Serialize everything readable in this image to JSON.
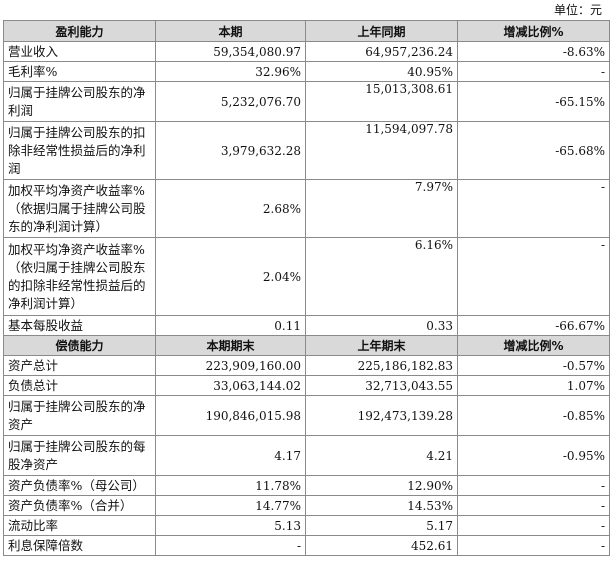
{
  "unit_label": "单位：元",
  "profitability": {
    "headers": [
      "盈利能力",
      "本期",
      "上年同期",
      "增减比例%"
    ],
    "rows": [
      {
        "label": "营业收入",
        "current": "59,354,080.97",
        "prior": "64,957,236.24",
        "change": "-8.63%"
      },
      {
        "label": "毛利率%",
        "current": "32.96%",
        "prior": "40.95%",
        "change": "-"
      },
      {
        "label": "归属于挂牌公司股东的净利润",
        "current": "5,232,076.70",
        "prior": "15,013,308.61",
        "change": "-65.15%"
      },
      {
        "label": "归属于挂牌公司股东的扣除非经常性损益后的净利润",
        "current": "3,979,632.28",
        "prior": "11,594,097.78",
        "change": "-65.68%"
      },
      {
        "label": "加权平均净资产收益率%（依据归属于挂牌公司股东的净利润计算）",
        "current": "2.68%",
        "prior": "7.97%",
        "change": "-"
      },
      {
        "label": "加权平均净资产收益率%（依归属于挂牌公司股东的扣除非经常性损益后的净利润计算）",
        "current": "2.04%",
        "prior": "6.16%",
        "change": "-"
      },
      {
        "label": "基本每股收益",
        "current": "0.11",
        "prior": "0.33",
        "change": "-66.67%"
      }
    ]
  },
  "solvency": {
    "headers": [
      "偿债能力",
      "本期期末",
      "上年期末",
      "增减比例%"
    ],
    "rows": [
      {
        "label": "资产总计",
        "current": "223,909,160.00",
        "prior": "225,186,182.83",
        "change": "-0.57%"
      },
      {
        "label": "负债总计",
        "current": "33,063,144.02",
        "prior": "32,713,043.55",
        "change": "1.07%"
      },
      {
        "label": "归属于挂牌公司股东的净资产",
        "current": "190,846,015.98",
        "prior": "192,473,139.28",
        "change": "-0.85%"
      },
      {
        "label": "归属于挂牌公司股东的每股净资产",
        "current": "4.17",
        "prior": "4.21",
        "change": "-0.95%"
      },
      {
        "label": "资产负债率%（母公司）",
        "current": "11.78%",
        "prior": "12.90%",
        "change": "-"
      },
      {
        "label": "资产负债率%（合并）",
        "current": "14.77%",
        "prior": "14.53%",
        "change": "-"
      },
      {
        "label": "流动比率",
        "current": "5.13",
        "prior": "5.17",
        "change": "-"
      },
      {
        "label": "利息保障倍数",
        "current": "-",
        "prior": "452.61",
        "change": "-"
      }
    ]
  }
}
